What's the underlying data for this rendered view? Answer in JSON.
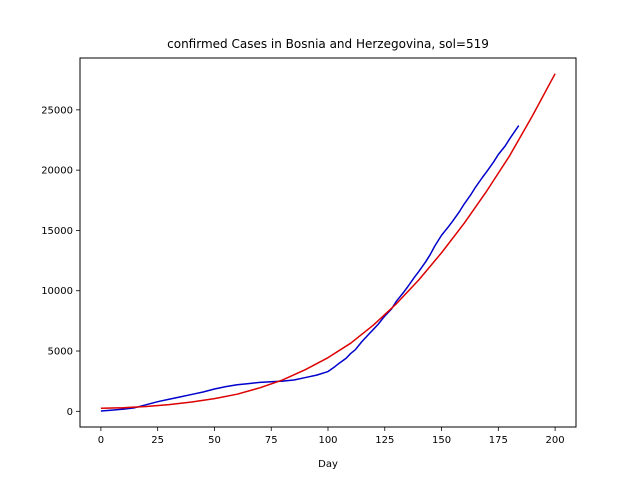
{
  "chart_data": {
    "type": "line",
    "title": "confirmed Cases in Bosnia and Herzegovina, sol=519",
    "xlabel": "Day",
    "ylabel": "",
    "xlim": [
      -9.2,
      209.2
    ],
    "ylim": [
      -1300,
      29300
    ],
    "x_ticks": [
      0,
      25,
      50,
      75,
      100,
      125,
      150,
      175,
      200
    ],
    "y_ticks": [
      0,
      5000,
      10000,
      15000,
      20000,
      25000
    ],
    "grid": false,
    "series": [
      {
        "color": "#0000cc",
        "x": [
          0,
          5,
          10,
          15,
          20,
          25,
          30,
          35,
          40,
          45,
          50,
          55,
          60,
          65,
          70,
          75,
          80,
          85,
          90,
          95,
          100,
          103,
          105,
          108,
          110,
          112,
          115,
          118,
          120,
          122,
          125,
          128,
          130,
          133,
          135,
          138,
          140,
          143,
          145,
          147,
          150,
          153,
          155,
          158,
          160,
          163,
          165,
          168,
          170,
          173,
          175,
          178,
          180,
          184
        ],
        "y": [
          30,
          100,
          180,
          300,
          550,
          800,
          1000,
          1200,
          1400,
          1600,
          1850,
          2050,
          2200,
          2300,
          2400,
          2450,
          2500,
          2600,
          2800,
          3000,
          3300,
          3700,
          4000,
          4400,
          4800,
          5100,
          5800,
          6400,
          6800,
          7200,
          7900,
          8500,
          9100,
          9800,
          10300,
          11100,
          11600,
          12400,
          13000,
          13700,
          14600,
          15300,
          15800,
          16600,
          17200,
          18000,
          18600,
          19400,
          19900,
          20700,
          21300,
          22000,
          22600,
          23700
        ]
      },
      {
        "color": "#dd0000",
        "x": [
          0,
          10,
          20,
          30,
          40,
          50,
          60,
          70,
          80,
          90,
          100,
          110,
          120,
          130,
          140,
          150,
          160,
          170,
          180,
          190,
          200
        ],
        "y": [
          250,
          300,
          400,
          560,
          770,
          1050,
          1420,
          1950,
          2600,
          3450,
          4450,
          5650,
          7150,
          8900,
          10900,
          13150,
          15600,
          18300,
          21200,
          24500,
          28000
        ]
      }
    ]
  }
}
